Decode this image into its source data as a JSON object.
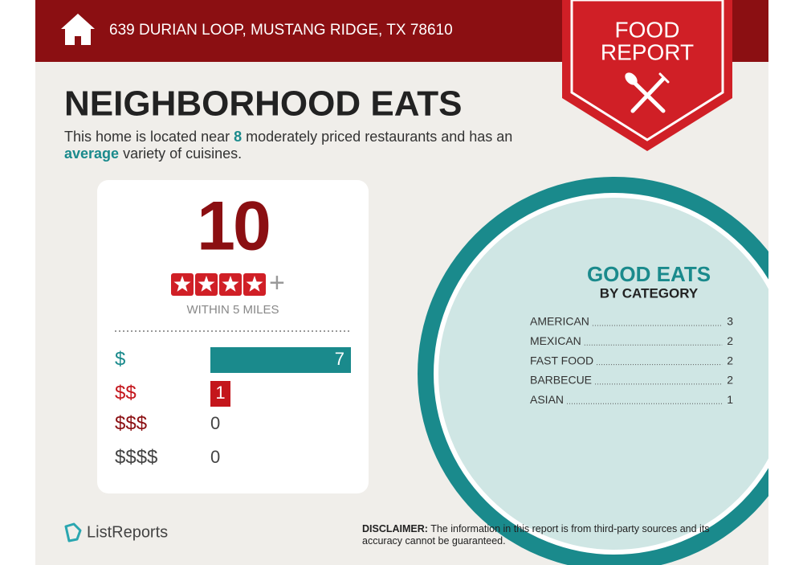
{
  "header": {
    "address": "639 DURIAN LOOP, MUSTANG RIDGE, TX 78610"
  },
  "badge": {
    "line1": "FOOD",
    "line2": "REPORT"
  },
  "title": "NEIGHBORHOOD EATS",
  "intro": {
    "before": "This home is located near ",
    "count": 8,
    "middle": " moderately priced restaurants and has an ",
    "variety": "average",
    "after": " variety of cuisines."
  },
  "score": {
    "value": 10,
    "stars": 4,
    "plus": "+",
    "label": "WITHIN 5 MILES"
  },
  "price_levels": {
    "categories": [
      "$",
      "$$",
      "$$$",
      "$$$$"
    ],
    "values": [
      7,
      1,
      0,
      0
    ],
    "colors": [
      "#1a8a8c",
      "#c4161c",
      "#8b0f12",
      "#444444"
    ]
  },
  "good_eats": {
    "title": "GOOD EATS",
    "subtitle": "BY CATEGORY",
    "items": [
      {
        "name": "AMERICAN",
        "count": 3
      },
      {
        "name": "MEXICAN",
        "count": 2
      },
      {
        "name": "FAST FOOD",
        "count": 2
      },
      {
        "name": "BARBECUE",
        "count": 2
      },
      {
        "name": "ASIAN",
        "count": 1
      }
    ]
  },
  "footer": {
    "brand": "ListReports",
    "disclaimer_label": "DISCLAIMER:",
    "disclaimer": " The information in this report is from third-party sources and its accuracy cannot be guaranteed."
  }
}
